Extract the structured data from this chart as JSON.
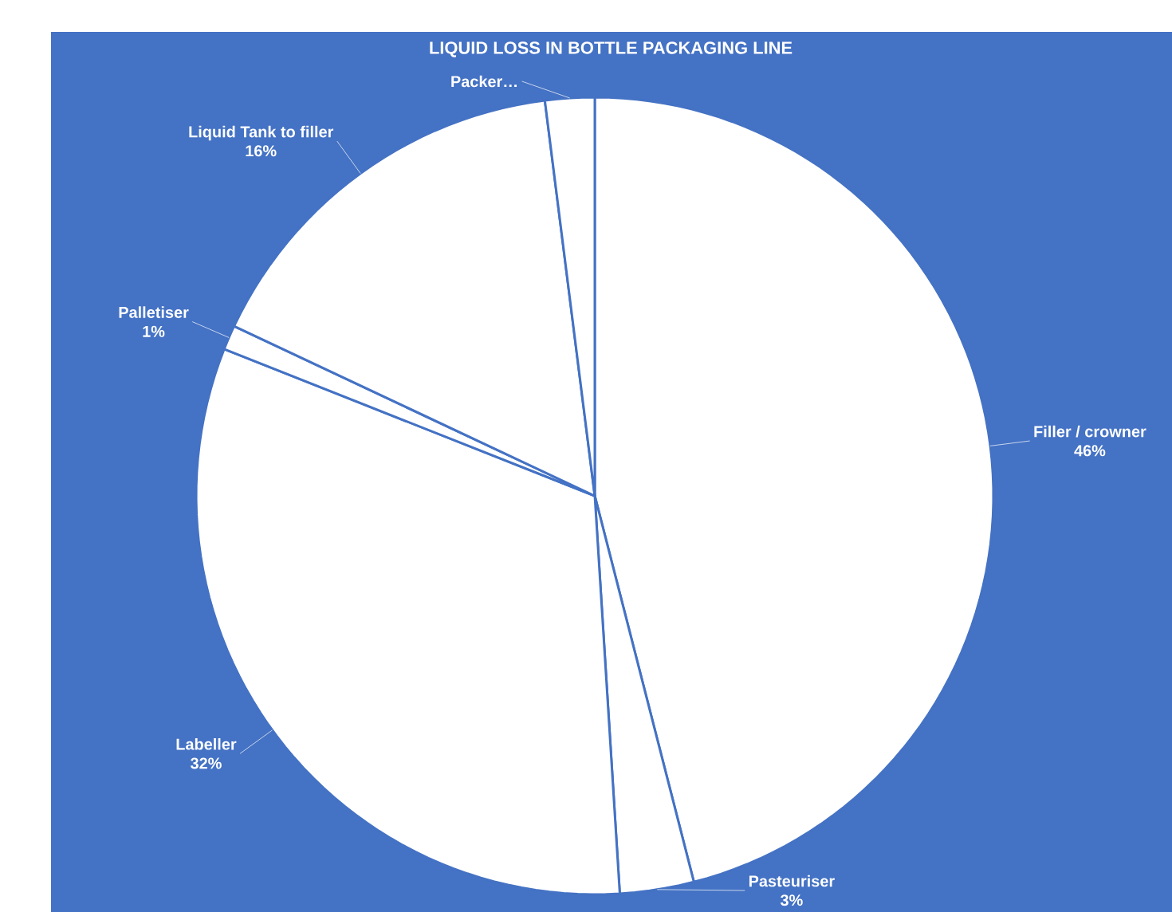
{
  "chart_data": {
    "type": "pie",
    "title": "LIQUID LOSS IN BOTTLE  PACKAGING LINE",
    "categories": [
      "Filler  / crowner",
      "Pasteuriser",
      "Labeller",
      "Palletiser",
      "Liquid Tank to filler",
      "Packer…"
    ],
    "values": [
      46,
      3,
      32,
      1,
      16,
      2
    ],
    "value_labels": [
      "46%",
      "3%",
      "32%",
      "1%",
      "16%",
      null
    ],
    "colors": [
      "#ffffff",
      "#ffffff",
      "#ffffff",
      "#ffffff",
      "#ffffff",
      "#ffffff"
    ]
  }
}
